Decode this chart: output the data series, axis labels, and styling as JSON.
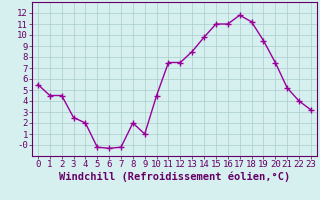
{
  "hours": [
    0,
    1,
    2,
    3,
    4,
    5,
    6,
    7,
    8,
    9,
    10,
    11,
    12,
    13,
    14,
    15,
    16,
    17,
    18,
    19,
    20,
    21,
    22,
    23
  ],
  "values": [
    5.5,
    4.5,
    4.5,
    2.5,
    2.0,
    -0.2,
    -0.3,
    -0.2,
    2.0,
    1.0,
    4.5,
    7.5,
    7.5,
    8.5,
    9.8,
    11.0,
    11.0,
    11.8,
    11.2,
    9.5,
    7.5,
    5.2,
    4.0,
    3.2
  ],
  "line_color": "#990099",
  "marker": "+",
  "marker_size": 4,
  "bg_color": "#d6f0f0",
  "grid_color": "#aacccc",
  "xlabel": "Windchill (Refroidissement éolien,°C)",
  "xlim": [
    -0.5,
    23.5
  ],
  "ylim": [
    -1,
    13
  ],
  "yticks": [
    0,
    1,
    2,
    3,
    4,
    5,
    6,
    7,
    8,
    9,
    10,
    11,
    12
  ],
  "xticks": [
    0,
    1,
    2,
    3,
    4,
    5,
    6,
    7,
    8,
    9,
    10,
    11,
    12,
    13,
    14,
    15,
    16,
    17,
    18,
    19,
    20,
    21,
    22,
    23
  ],
  "axis_label_color": "#660066",
  "tick_color": "#660066",
  "xlabel_fontsize": 7.5,
  "tick_fontsize": 6.5,
  "line_width": 1.0,
  "marker_edge_width": 1.0
}
